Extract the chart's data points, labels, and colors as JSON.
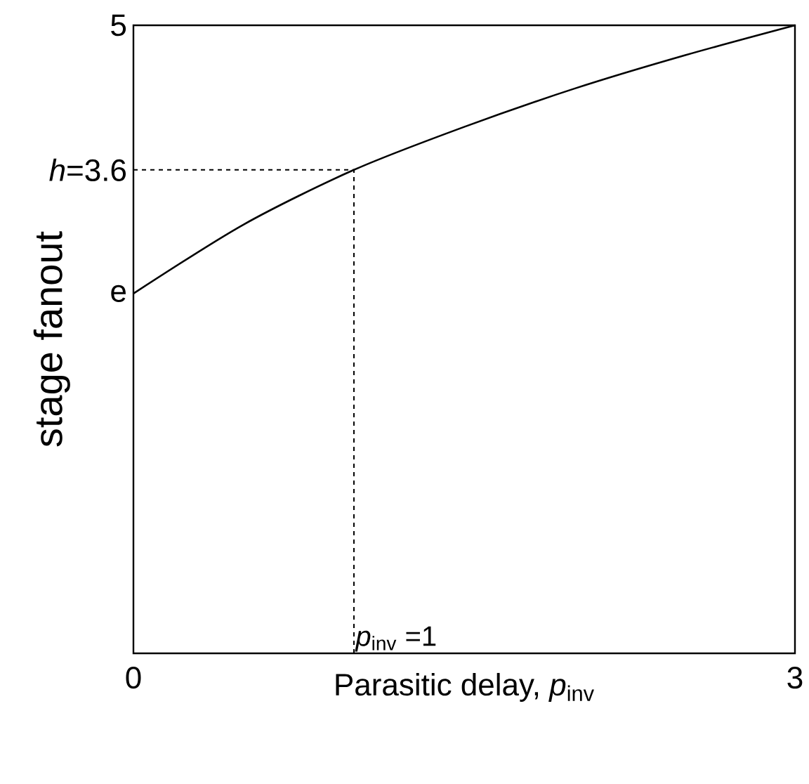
{
  "chart_data": {
    "type": "line",
    "xlabel": "Parasitic delay, *p*$_{inv}$",
    "ylabel": "stage fanout",
    "x": [
      0,
      0.5,
      1,
      1.5,
      2,
      2.5,
      3
    ],
    "series": [
      {
        "color": "#000000",
        "values": [
          2.718,
          3.18,
          3.6,
          3.97,
          4.33,
          4.67,
          5
        ]
      }
    ],
    "xlim": [
      0,
      3
    ],
    "xticks": [
      0,
      3
    ],
    "ylim": [
      1.2,
      5
    ],
    "log": "y",
    "yticks": [
      {
        "value": 2.718,
        "label": "e"
      },
      {
        "value": 3.6,
        "label": "*h*=3.6"
      },
      5
    ],
    "ref_lines": [
      {
        "axis": "x",
        "value": 1,
        "label": "*p*$_{inv}$ =1",
        "line_style": "dashed"
      },
      {
        "axis": "y",
        "value": 3.6,
        "label": null,
        "line_style": "dashed"
      }
    ],
    "grid": false,
    "marker": "none",
    "line_style": "solid"
  }
}
